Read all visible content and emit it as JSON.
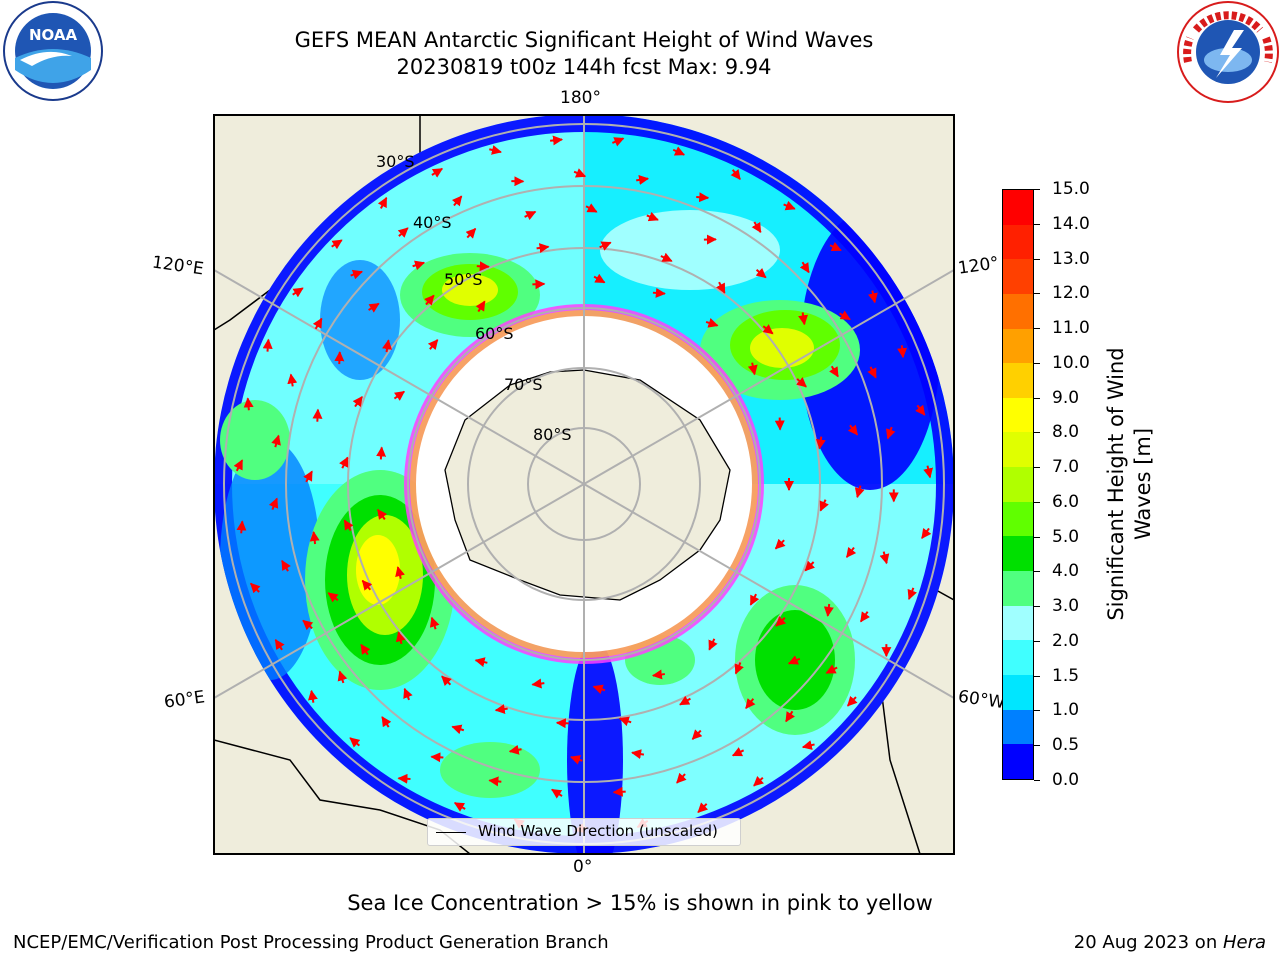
{
  "header": {
    "title_line1": "GEFS MEAN Antarctic Significant Height of Wind Waves",
    "title_line2": "20230819 t00z 144h fcst   Max: 9.94"
  },
  "logos": {
    "left": "noaa-logo",
    "right": "national-weather-service-logo",
    "left_text": "NOAA",
    "right_text": "NATIONAL WEATHER SERVICE"
  },
  "map": {
    "longitude_labels": [
      "180°",
      "120°E",
      "120°",
      "60°E",
      "60°W",
      "0°"
    ],
    "latitude_labels": [
      "30°S",
      "40°S",
      "50°S",
      "60°S",
      "70°S",
      "80°S"
    ],
    "colors": {
      "land": "#efeddc",
      "ocean_low": "#0000ff",
      "arrows": "#ff0000",
      "sea_ice": "#ff40ff"
    }
  },
  "colorbar": {
    "title": "Significant Height of Wind\nWaves [m]",
    "ticks": [
      "0.0",
      "0.5",
      "1.0",
      "1.5",
      "2.0",
      "3.0",
      "4.0",
      "5.0",
      "6.0",
      "7.0",
      "8.0",
      "9.0",
      "10.0",
      "11.0",
      "12.0",
      "13.0",
      "14.0",
      "15.0"
    ],
    "colors": [
      "#0000ff",
      "#0080ff",
      "#00e6ff",
      "#40ffff",
      "#a0ffff",
      "#50ff80",
      "#00e000",
      "#60ff00",
      "#b0ff00",
      "#e0ff00",
      "#ffff00",
      "#ffd000",
      "#ffa000",
      "#ff7000",
      "#ff4000",
      "#ff2000",
      "#ff0000"
    ]
  },
  "legend": {
    "label": "Wind Wave Direction (unscaled)"
  },
  "caption": "Sea Ice Concentration > 15% is shown in pink to yellow",
  "footer": {
    "left": "NCEP/EMC/Verification Post Processing Product Generation Branch",
    "right_date": "20 Aug 2023 on ",
    "right_host": "Hera"
  }
}
